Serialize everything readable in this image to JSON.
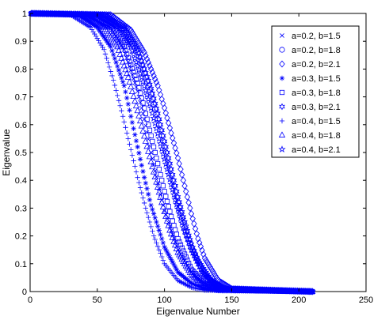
{
  "chart_data": {
    "type": "scatter",
    "title": "",
    "xlabel": "Eigenvalue Number",
    "ylabel": "Eigenvalue",
    "xlim": [
      0,
      250
    ],
    "ylim": [
      0,
      1
    ],
    "xticks": [
      0,
      50,
      100,
      150,
      200,
      250
    ],
    "yticks": [
      0,
      0.1,
      0.2,
      0.3,
      0.4,
      0.5,
      0.6,
      0.7,
      0.8,
      0.9,
      1
    ],
    "grid": false,
    "legend_position": "top-right",
    "marker_color": "#0000ff",
    "series": [
      {
        "name": "a=0.2, b=1.5",
        "marker": "x",
        "n": 210,
        "x": [
          0,
          40,
          60,
          70,
          80,
          85,
          90,
          95,
          100,
          110,
          120,
          130,
          140,
          150,
          210
        ],
        "y": [
          1,
          0.995,
          0.95,
          0.87,
          0.72,
          0.62,
          0.5,
          0.39,
          0.29,
          0.15,
          0.07,
          0.03,
          0.01,
          0.005,
          0
        ]
      },
      {
        "name": "a=0.2, b=1.8",
        "marker": "o",
        "n": 210,
        "x": [
          0,
          50,
          70,
          80,
          90,
          95,
          100,
          105,
          110,
          115,
          120,
          130,
          140,
          150,
          210
        ],
        "y": [
          1,
          0.995,
          0.94,
          0.86,
          0.71,
          0.62,
          0.52,
          0.42,
          0.32,
          0.23,
          0.16,
          0.06,
          0.02,
          0.005,
          0
        ]
      },
      {
        "name": "a=0.2, b=2.1",
        "marker": "diamond",
        "n": 210,
        "x": [
          0,
          60,
          75,
          85,
          95,
          100,
          105,
          110,
          115,
          120,
          125,
          130,
          140,
          150,
          210
        ],
        "y": [
          1,
          0.995,
          0.94,
          0.86,
          0.74,
          0.66,
          0.57,
          0.48,
          0.38,
          0.28,
          0.19,
          0.12,
          0.04,
          0.01,
          0
        ]
      },
      {
        "name": "a=0.3, b=1.5",
        "marker": "asterisk",
        "n": 210,
        "x": [
          0,
          35,
          50,
          60,
          70,
          75,
          80,
          85,
          90,
          100,
          110,
          120,
          130,
          140,
          210
        ],
        "y": [
          1,
          0.995,
          0.95,
          0.88,
          0.74,
          0.63,
          0.52,
          0.41,
          0.31,
          0.16,
          0.07,
          0.03,
          0.01,
          0.003,
          0
        ]
      },
      {
        "name": "a=0.3, b=1.8",
        "marker": "square",
        "n": 210,
        "x": [
          0,
          45,
          60,
          70,
          80,
          85,
          90,
          95,
          100,
          105,
          110,
          120,
          130,
          140,
          210
        ],
        "y": [
          1,
          0.995,
          0.95,
          0.88,
          0.75,
          0.66,
          0.56,
          0.46,
          0.36,
          0.27,
          0.19,
          0.08,
          0.03,
          0.01,
          0
        ]
      },
      {
        "name": "a=0.3, b=2.1",
        "marker": "hexagram",
        "n": 210,
        "x": [
          0,
          55,
          70,
          80,
          90,
          95,
          100,
          105,
          110,
          115,
          120,
          125,
          135,
          145,
          210
        ],
        "y": [
          1,
          0.995,
          0.95,
          0.87,
          0.73,
          0.64,
          0.54,
          0.44,
          0.34,
          0.25,
          0.17,
          0.11,
          0.04,
          0.01,
          0
        ]
      },
      {
        "name": "a=0.4, b=1.5",
        "marker": "plus",
        "n": 210,
        "x": [
          0,
          30,
          45,
          55,
          62,
          68,
          74,
          80,
          86,
          92,
          100,
          110,
          120,
          130,
          210
        ],
        "y": [
          1,
          0.995,
          0.95,
          0.87,
          0.76,
          0.65,
          0.53,
          0.41,
          0.3,
          0.2,
          0.1,
          0.04,
          0.015,
          0.005,
          0
        ]
      },
      {
        "name": "a=0.4, b=1.8",
        "marker": "triangle",
        "n": 210,
        "x": [
          0,
          40,
          55,
          65,
          73,
          80,
          86,
          92,
          98,
          104,
          110,
          120,
          130,
          140,
          210
        ],
        "y": [
          1,
          0.995,
          0.95,
          0.88,
          0.77,
          0.65,
          0.54,
          0.43,
          0.32,
          0.22,
          0.14,
          0.06,
          0.02,
          0.005,
          0
        ]
      },
      {
        "name": "a=0.4, b=2.1",
        "marker": "pentagram",
        "n": 210,
        "x": [
          0,
          50,
          65,
          75,
          83,
          90,
          96,
          102,
          108,
          114,
          120,
          128,
          136,
          145,
          210
        ],
        "y": [
          1,
          0.995,
          0.95,
          0.88,
          0.77,
          0.66,
          0.55,
          0.44,
          0.33,
          0.23,
          0.15,
          0.07,
          0.03,
          0.008,
          0
        ]
      }
    ]
  }
}
